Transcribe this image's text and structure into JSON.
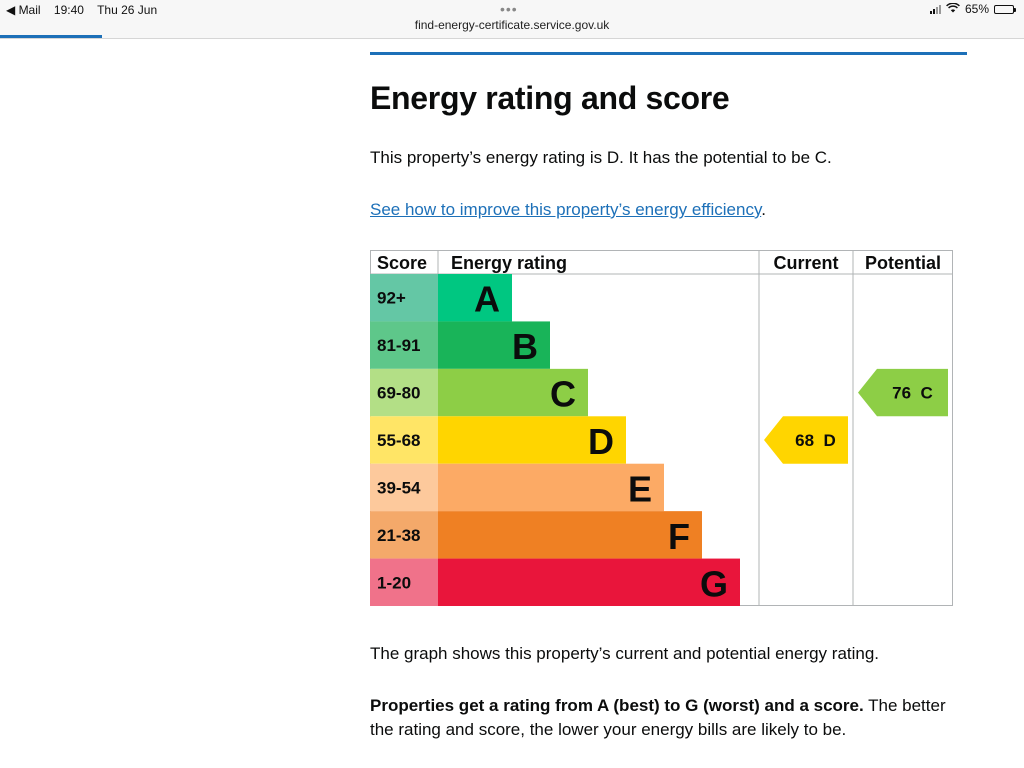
{
  "status_bar": {
    "back_app": "◀ Mail",
    "time": "19:40",
    "date": "Thu 26 Jun",
    "url": "find-energy-certificate.service.gov.uk",
    "battery": "65%",
    "battery_level": 0.65
  },
  "page": {
    "heading": "Energy rating and score",
    "rating_sentence": "This property’s energy rating is D. It has the potential to be C.",
    "improve_link": "See how to improve this property’s energy efficiency",
    "improve_link_suffix": ".",
    "graph_caption": "The graph shows this property’s current and potential energy rating.",
    "rating_info_bold": "Properties get a rating from A (best) to G (worst) and a score.",
    "rating_info_rest": " The better the rating and score, the lower your energy bills are likely to be."
  },
  "chart_data": {
    "type": "table",
    "headers": {
      "score": "Score",
      "rating": "Energy rating",
      "current": "Current",
      "potential": "Potential"
    },
    "bands": [
      {
        "score": "92+",
        "letter": "A",
        "color": "#00c781",
        "score_color": "#64c7a5"
      },
      {
        "score": "81-91",
        "letter": "B",
        "color": "#19b459",
        "score_color": "#5ec78a"
      },
      {
        "score": "69-80",
        "letter": "C",
        "color": "#8dce46",
        "score_color": "#b3df86"
      },
      {
        "score": "55-68",
        "letter": "D",
        "color": "#ffd500",
        "score_color": "#ffe566"
      },
      {
        "score": "39-54",
        "letter": "E",
        "color": "#fcaa65",
        "score_color": "#fdc99c"
      },
      {
        "score": "21-38",
        "letter": "F",
        "color": "#ef8023",
        "score_color": "#f4a96a"
      },
      {
        "score": "1-20",
        "letter": "G",
        "color": "#e9153b",
        "score_color": "#f0728a"
      }
    ],
    "current": {
      "score": 68,
      "letter": "D",
      "label": "68  D"
    },
    "potential": {
      "score": 76,
      "letter": "C",
      "label": "76  C"
    }
  }
}
